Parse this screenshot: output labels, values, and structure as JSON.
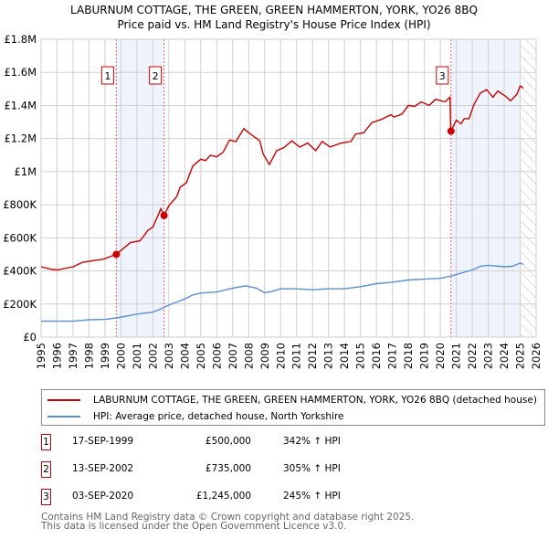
{
  "title_line1": "LABURNUM COTTAGE, THE GREEN, GREEN HAMMERTON, YORK, YO26 8BQ",
  "title_line2": "Price paid vs. HM Land Registry's House Price Index (HPI)",
  "legend": {
    "property": "LABURNUM COTTAGE, THE GREEN, GREEN HAMMERTON, YORK, YO26 8BQ (detached house)",
    "hpi": "HPI: Average price, detached house, North Yorkshire"
  },
  "sales": [
    {
      "num": "1",
      "date": "17-SEP-1999",
      "price": "£500,000",
      "hpi": "342% ↑ HPI"
    },
    {
      "num": "2",
      "date": "13-SEP-2002",
      "price": "£735,000",
      "hpi": "305% ↑ HPI"
    },
    {
      "num": "3",
      "date": "03-SEP-2020",
      "price": "£1,245,000",
      "hpi": "245% ↑ HPI"
    }
  ],
  "footer": {
    "line1": "Contains HM Land Registry data © Crown copyright and database right 2025.",
    "line2": "This data is licensed under the Open Government Licence v3.0."
  },
  "colors": {
    "property": "#cc0000",
    "hpi": "#5b8fd4",
    "shade": "#eef3fc"
  },
  "chart_data": {
    "type": "line",
    "xlim": [
      1995,
      2026
    ],
    "ylim": [
      0,
      1800000
    ],
    "yticks": [
      0,
      200000,
      400000,
      600000,
      800000,
      1000000,
      1200000,
      1400000,
      1600000,
      1800000
    ],
    "ytick_labels": [
      "£0",
      "£200K",
      "£400K",
      "£600K",
      "£800K",
      "£1M",
      "£1.2M",
      "£1.4M",
      "£1.6M",
      "£1.8M"
    ],
    "xticks": [
      1995,
      1996,
      1997,
      1998,
      1999,
      2000,
      2001,
      2002,
      2003,
      2004,
      2005,
      2006,
      2007,
      2008,
      2009,
      2010,
      2011,
      2012,
      2013,
      2014,
      2015,
      2016,
      2017,
      2018,
      2019,
      2020,
      2021,
      2022,
      2023,
      2024,
      2025,
      2026
    ],
    "xtick_labels": [
      "1995",
      "1996",
      "1997",
      "1998",
      "1999",
      "2000",
      "2001",
      "2002",
      "2003",
      "2004",
      "2005",
      "2006",
      "2007",
      "2008",
      "2009",
      "2010",
      "2011",
      "2012",
      "2013",
      "2014",
      "2015",
      "2016",
      "2017",
      "2018",
      "2019",
      "2020",
      "2021",
      "2022",
      "2023",
      "2024",
      "2025",
      "2026"
    ],
    "grid": true,
    "shaded_ranges": [
      [
        1999.71,
        2002.7
      ],
      [
        2020.67,
        2025.0
      ]
    ],
    "future_hatch_from": 2025.05,
    "sale_markers": [
      {
        "label": "1",
        "x": 1999.71,
        "y": 500000
      },
      {
        "label": "2",
        "x": 2002.7,
        "y": 735000
      },
      {
        "label": "3",
        "x": 2020.67,
        "y": 1245000
      }
    ],
    "series": [
      {
        "name": "property",
        "x": [
          1995,
          1995.6,
          1996,
          1997,
          1997.6,
          1998.9,
          1999.71,
          2000.6,
          2001.2,
          2001.7,
          2002,
          2002.5,
          2002.7,
          2003,
          2003.5,
          2003.7,
          2004.1,
          2004.5,
          2005,
          2005.3,
          2005.6,
          2006,
          2006.4,
          2006.8,
          2007.2,
          2007.7,
          2008.1,
          2008.7,
          2008.9,
          2009.3,
          2009.75,
          2010.2,
          2010.7,
          2011.2,
          2011.7,
          2012.2,
          2012.6,
          2013.1,
          2013.8,
          2014.4,
          2014.7,
          2015.2,
          2015.7,
          2016.3,
          2016.9,
          2017.1,
          2017.6,
          2018,
          2018.4,
          2018.8,
          2019.3,
          2019.7,
          2020.3,
          2020.6,
          2020.65,
          2020.67,
          2021,
          2021.3,
          2021.5,
          2021.8,
          2022.1,
          2022.5,
          2022.9,
          2023.3,
          2023.6,
          2024.1,
          2024.4,
          2024.8,
          2025.0,
          2025.2
        ],
        "y": [
          425000,
          410000,
          406000,
          425000,
          452000,
          471000,
          500000,
          572000,
          582000,
          646000,
          665000,
          776000,
          735000,
          794000,
          850000,
          905000,
          933000,
          1034000,
          1075000,
          1067000,
          1099000,
          1090000,
          1117000,
          1191000,
          1182000,
          1260000,
          1228000,
          1186000,
          1108000,
          1043000,
          1127000,
          1145000,
          1186000,
          1149000,
          1173000,
          1127000,
          1182000,
          1149000,
          1173000,
          1182000,
          1228000,
          1234000,
          1296000,
          1315000,
          1344000,
          1330000,
          1348000,
          1400000,
          1394000,
          1422000,
          1400000,
          1437000,
          1422000,
          1450000,
          1260000,
          1245000,
          1311000,
          1289000,
          1320000,
          1320000,
          1404000,
          1474000,
          1496000,
          1450000,
          1487000,
          1455000,
          1428000,
          1468000,
          1518000,
          1505000
        ]
      },
      {
        "name": "hpi",
        "x": [
          1995,
          1997,
          1998,
          1999,
          1999.71,
          2000.5,
          2001,
          2002,
          2002.5,
          2003,
          2003.5,
          2004,
          2004.5,
          2005,
          2006,
          2007,
          2007.8,
          2008.5,
          2009,
          2009.5,
          2010,
          2011,
          2012,
          2013,
          2014,
          2015,
          2016,
          2017,
          2018,
          2019,
          2020,
          2020.67,
          2021.5,
          2022,
          2022.5,
          2023,
          2024,
          2024.5,
          2025,
          2025.2
        ],
        "y": [
          96000,
          96000,
          105000,
          107000,
          116000,
          129000,
          139000,
          151000,
          170000,
          194000,
          212000,
          231000,
          255000,
          266000,
          273000,
          296000,
          310000,
          296000,
          268000,
          277000,
          292000,
          292000,
          286000,
          292000,
          292000,
          305000,
          323000,
          332000,
          345000,
          351000,
          355000,
          369000,
          392000,
          406000,
          428000,
          434000,
          425000,
          428000,
          447000,
          440000
        ]
      }
    ]
  }
}
